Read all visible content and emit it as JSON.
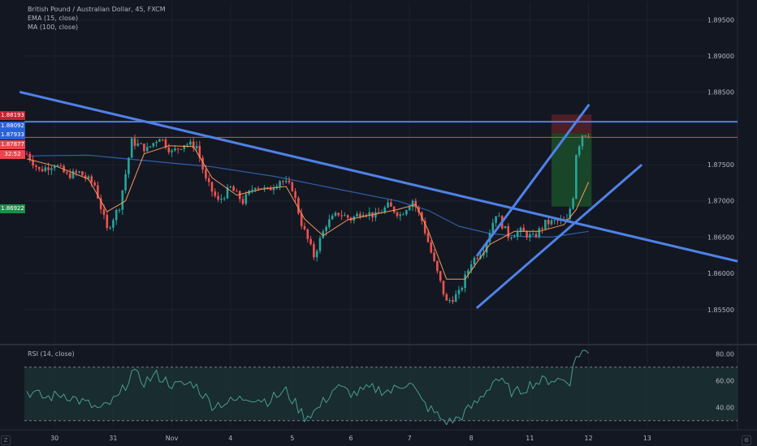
{
  "legend": {
    "symbol": "British Pound / Australian Dollar, 45, FXCM",
    "ema": "EMA (15, close)",
    "ma": "MA (100, close)",
    "rsi": "RSI (14, close)"
  },
  "colors": {
    "background": "#131722",
    "grid": "#1e222d",
    "up": "#26a69a",
    "down": "#ef5350",
    "trendline": "#4f82e8",
    "ema": "#f59a5c",
    "ma": "#2f5fa8",
    "rsi": "#4a9b8f",
    "tp_zone": "#1b4d2a",
    "sl_zone": "#5a1f24"
  },
  "price_tags": [
    {
      "label": "1.88193",
      "color": "#c4232f"
    },
    {
      "label": "1.88092",
      "color": "#2a63d6"
    },
    {
      "label": "1.87933",
      "color": "#2a63d6"
    },
    {
      "label": "1.87877",
      "color": "#e8474d"
    },
    {
      "label": "32:52",
      "color": "#e8474d"
    },
    {
      "label": "1.86922",
      "color": "#1e8c4a"
    }
  ],
  "chart_data": {
    "type": "candlestick",
    "title": "British Pound / Australian Dollar, 45, FXCM",
    "y_ticks": [
      "1.89500",
      "1.89000",
      "1.88500",
      "1.87500",
      "1.87000",
      "1.86500",
      "1.86000",
      "1.85500"
    ],
    "x_ticks": [
      "30",
      "31",
      "Nov",
      "4",
      "5",
      "6",
      "7",
      "8",
      "11",
      "12",
      "13"
    ],
    "ylim": [
      1.8505,
      1.8975
    ],
    "price_path": [
      [
        0,
        1.8765
      ],
      [
        4,
        1.8742
      ],
      [
        9,
        1.8751
      ],
      [
        13,
        1.8735
      ],
      [
        17,
        1.8739
      ],
      [
        22,
        1.8722
      ],
      [
        26,
        1.866
      ],
      [
        30,
        1.8693
      ],
      [
        34,
        1.8782
      ],
      [
        39,
        1.8771
      ],
      [
        43,
        1.8789
      ],
      [
        47,
        1.8767
      ],
      [
        51,
        1.8779
      ],
      [
        55,
        1.8776
      ],
      [
        58,
        1.8728
      ],
      [
        62,
        1.8699
      ],
      [
        66,
        1.8718
      ],
      [
        70,
        1.8699
      ],
      [
        74,
        1.8722
      ],
      [
        78,
        1.8714
      ],
      [
        82,
        1.8729
      ],
      [
        86,
        1.8718
      ],
      [
        89,
        1.8669
      ],
      [
        93,
        1.8624
      ],
      [
        97,
        1.8668
      ],
      [
        101,
        1.8683
      ],
      [
        105,
        1.8675
      ],
      [
        109,
        1.8686
      ],
      [
        113,
        1.8679
      ],
      [
        117,
        1.8693
      ],
      [
        121,
        1.8681
      ],
      [
        125,
        1.8701
      ],
      [
        128,
        1.8673
      ],
      [
        132,
        1.8614
      ],
      [
        136,
        1.856
      ],
      [
        140,
        1.8572
      ],
      [
        144,
        1.8616
      ],
      [
        148,
        1.8634
      ],
      [
        152,
        1.8683
      ],
      [
        156,
        1.8652
      ],
      [
        160,
        1.8658
      ],
      [
        164,
        1.8649
      ],
      [
        168,
        1.8669
      ],
      [
        172,
        1.8672
      ],
      [
        175,
        1.8672
      ],
      [
        177,
        1.8707
      ],
      [
        178,
        1.8766
      ],
      [
        180,
        1.8792
      ],
      [
        182,
        1.8793
      ]
    ],
    "ema_15": [
      [
        0,
        1.8758
      ],
      [
        10,
        1.8747
      ],
      [
        20,
        1.873
      ],
      [
        26,
        1.8685
      ],
      [
        32,
        1.87
      ],
      [
        38,
        1.8765
      ],
      [
        46,
        1.8776
      ],
      [
        54,
        1.8775
      ],
      [
        60,
        1.8732
      ],
      [
        68,
        1.8708
      ],
      [
        76,
        1.8716
      ],
      [
        84,
        1.872
      ],
      [
        90,
        1.8675
      ],
      [
        96,
        1.8652
      ],
      [
        104,
        1.8674
      ],
      [
        112,
        1.8681
      ],
      [
        120,
        1.8688
      ],
      [
        126,
        1.8695
      ],
      [
        130,
        1.866
      ],
      [
        136,
        1.8592
      ],
      [
        142,
        1.8592
      ],
      [
        150,
        1.864
      ],
      [
        158,
        1.8658
      ],
      [
        166,
        1.8658
      ],
      [
        174,
        1.8667
      ],
      [
        178,
        1.8688
      ],
      [
        182,
        1.8726
      ]
    ],
    "ma_100": [
      [
        0,
        1.8762
      ],
      [
        20,
        1.8763
      ],
      [
        40,
        1.8755
      ],
      [
        60,
        1.8747
      ],
      [
        80,
        1.8734
      ],
      [
        100,
        1.8717
      ],
      [
        120,
        1.87
      ],
      [
        130,
        1.8687
      ],
      [
        140,
        1.8665
      ],
      [
        150,
        1.8655
      ],
      [
        160,
        1.8651
      ],
      [
        170,
        1.865
      ],
      [
        182,
        1.8658
      ]
    ],
    "horizontal_levels": [
      {
        "price": 1.88092,
        "color": "#4f82e8"
      },
      {
        "price": 1.87877,
        "color": "#e8474d"
      }
    ],
    "trendlines": [
      {
        "from": [
          -2,
          1.885
        ],
        "to": [
          230,
          1.8617
        ]
      },
      {
        "from": [
          146,
          1.8625
        ],
        "to": [
          182,
          1.8832
        ]
      },
      {
        "from": [
          146,
          1.8553
        ],
        "to": [
          199,
          1.8749
        ]
      }
    ],
    "position": {
      "x_start": 170,
      "x_end": 183,
      "entry": 1.87933,
      "stop": 1.88193,
      "target": 1.86922
    },
    "rsi": {
      "name": "RSI (14, close)",
      "y_ticks": [
        "80.00",
        "60.00",
        "40.00"
      ],
      "ylim": [
        25,
        85
      ],
      "upper": 70,
      "lower": 30,
      "values": [
        [
          0,
          52
        ],
        [
          6,
          47
        ],
        [
          12,
          50
        ],
        [
          18,
          44
        ],
        [
          24,
          38
        ],
        [
          30,
          48
        ],
        [
          34,
          66
        ],
        [
          38,
          59
        ],
        [
          42,
          64
        ],
        [
          48,
          56
        ],
        [
          54,
          58
        ],
        [
          60,
          42
        ],
        [
          66,
          44
        ],
        [
          72,
          48
        ],
        [
          78,
          45
        ],
        [
          84,
          52
        ],
        [
          90,
          33
        ],
        [
          94,
          38
        ],
        [
          100,
          55
        ],
        [
          106,
          50
        ],
        [
          112,
          54
        ],
        [
          118,
          52
        ],
        [
          124,
          60
        ],
        [
          128,
          44
        ],
        [
          132,
          36
        ],
        [
          136,
          28
        ],
        [
          140,
          32
        ],
        [
          146,
          44
        ],
        [
          152,
          62
        ],
        [
          158,
          50
        ],
        [
          164,
          58
        ],
        [
          170,
          61
        ],
        [
          176,
          60
        ],
        [
          178,
          78
        ],
        [
          180,
          82
        ],
        [
          182,
          80
        ]
      ]
    }
  }
}
